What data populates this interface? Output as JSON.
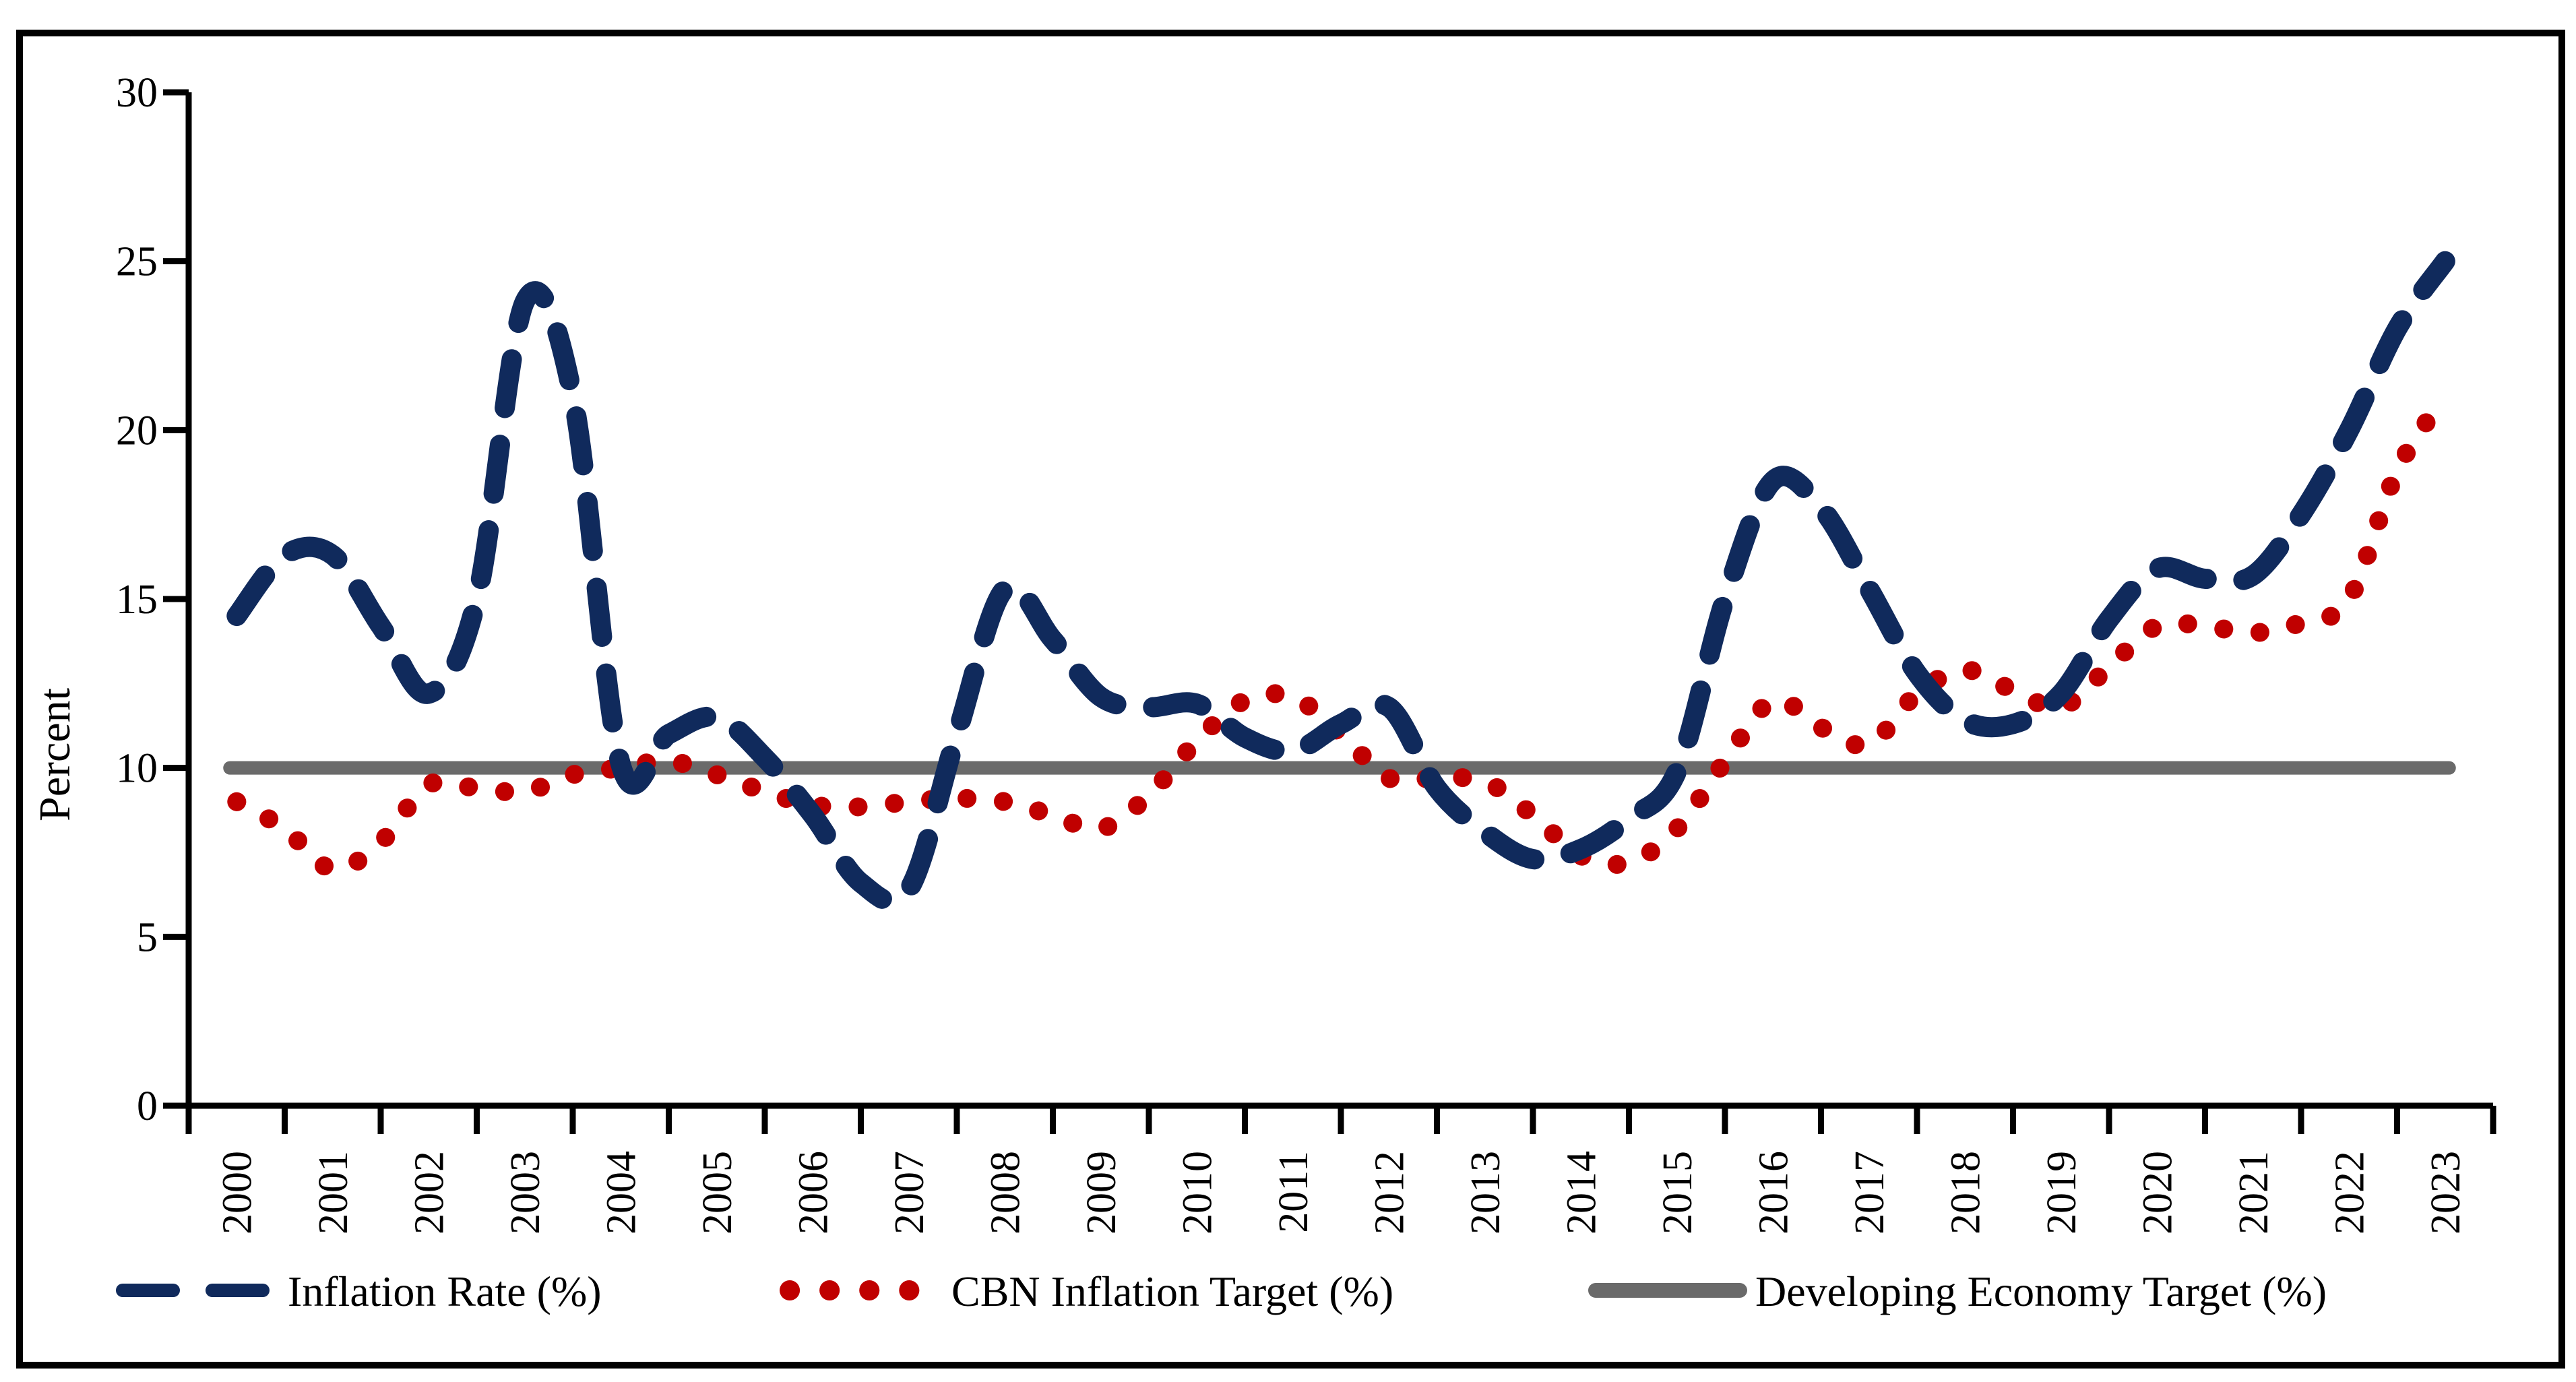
{
  "chart_data": {
    "type": "line",
    "title": "",
    "xlabel": "",
    "ylabel": "Percent",
    "ylim": [
      0,
      30
    ],
    "yticks": [
      0,
      5,
      10,
      15,
      20,
      25,
      30
    ],
    "x_tick_years": [
      "2000",
      "2001",
      "2002",
      "2003",
      "2004",
      "2005",
      "2006",
      "2007",
      "2008",
      "2009",
      "2010",
      "2011",
      "2012",
      "2013",
      "2014",
      "2015",
      "2016",
      "2017",
      "2018",
      "2019",
      "2020",
      "2021",
      "2022",
      "2023"
    ],
    "grid": false,
    "legend_position": "bottom",
    "x": [
      2000,
      2000.5,
      2001,
      2001.5,
      2002,
      2002.5,
      2003,
      2003.5,
      2004,
      2004.5,
      2005,
      2005.5,
      2006,
      2006.5,
      2007,
      2007.5,
      2008,
      2008.5,
      2009,
      2009.5,
      2010,
      2010.5,
      2011,
      2011.5,
      2012,
      2012.5,
      2013,
      2013.5,
      2014,
      2014.5,
      2015,
      2015.5,
      2016,
      2016.5,
      2017,
      2017.5,
      2018,
      2018.5,
      2019,
      2019.5,
      2020,
      2020.5,
      2021,
      2021.5,
      2022,
      2022.5,
      2023
    ],
    "series": [
      {
        "name": "Inflation Rate (%)",
        "color": "#102a5c",
        "style": "dashed",
        "values": [
          14.5,
          16.3,
          16.3,
          14.2,
          12.2,
          15.0,
          23.8,
          21.0,
          10.1,
          11.0,
          11.5,
          10.3,
          8.6,
          6.6,
          6.4,
          11.0,
          15.3,
          13.8,
          12.1,
          11.8,
          11.9,
          10.9,
          10.5,
          11.3,
          11.8,
          9.4,
          8.1,
          7.3,
          7.6,
          8.5,
          9.9,
          15.0,
          18.5,
          17.7,
          15.3,
          12.8,
          11.4,
          11.3,
          12.2,
          14.4,
          15.9,
          15.6,
          15.7,
          17.5,
          20.0,
          23.0,
          25.0
        ]
      },
      {
        "name": "CBN Inflation Target (%)",
        "color": "#c00000",
        "style": "dotted",
        "values": [
          9.0,
          8.2,
          7.0,
          7.8,
          9.5,
          9.4,
          9.3,
          9.8,
          10.0,
          10.2,
          9.8,
          9.3,
          8.9,
          8.85,
          9.0,
          9.1,
          9.0,
          8.6,
          8.2,
          9.2,
          10.8,
          12.0,
          12.1,
          11.0,
          9.7,
          9.7,
          9.6,
          8.6,
          7.4,
          7.2,
          8.2,
          10.2,
          12.0,
          11.2,
          10.7,
          12.2,
          12.9,
          12.3,
          11.8,
          13.0,
          14.2,
          14.2,
          14.0,
          14.3,
          15.0,
          18.8,
          21.0
        ]
      },
      {
        "name": "Developing Economy Target (%)",
        "color": "#6a6a6a",
        "style": "solid",
        "constant_value": 10,
        "x_span": [
          2000,
          2023
        ]
      }
    ],
    "axis_color": "#000000",
    "frame_color": "#000000",
    "background_color": "#ffffff"
  }
}
